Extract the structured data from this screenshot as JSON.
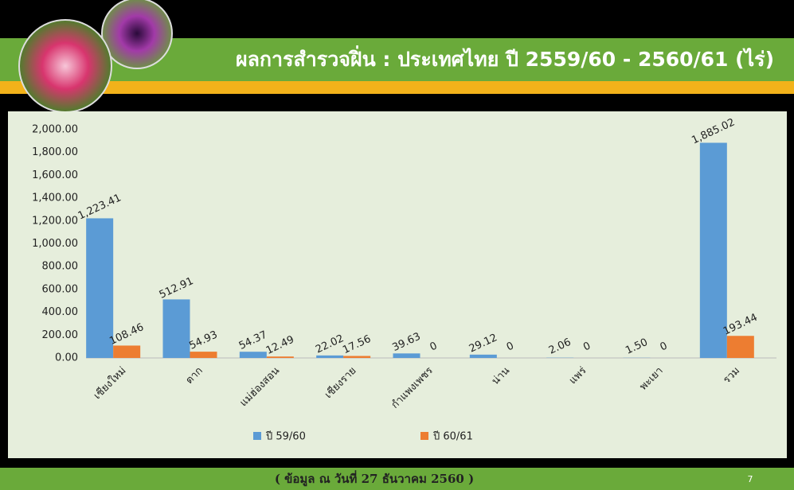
{
  "chart_data": {
    "type": "bar",
    "title": "ผลการสำรวจฝิ่น : ประเทศไทย ปี 2559/60 - 2560/61 (ไร่)",
    "categories": [
      "เชียงใหม่",
      "ตาก",
      "แม่ฮ่องสอน",
      "เชียงราย",
      "กำแพงเพชร",
      "น่าน",
      "แพร่",
      "พะเยา",
      "รวม"
    ],
    "series": [
      {
        "name": "ปี 59/60",
        "color": "#5b9bd5",
        "values": [
          1223.41,
          512.91,
          54.37,
          22.02,
          39.63,
          29.12,
          2.06,
          1.5,
          1885.02
        ],
        "value_labels": [
          "1,223.41",
          "512.91",
          "54.37",
          "22.02",
          "39.63",
          "29.12",
          "2.06",
          "1.50",
          "1,885.02"
        ]
      },
      {
        "name": "ปี 60/61",
        "color": "#ed7d31",
        "values": [
          108.46,
          54.93,
          12.49,
          17.56,
          0,
          0,
          0,
          0,
          193.44
        ]
      }
    ],
    "ylim": [
      0,
      2000
    ],
    "yticks": [
      {
        "value": 0,
        "label": "0.00"
      },
      {
        "value": 200,
        "label": "200.00"
      },
      {
        "value": 400,
        "label": "400.00"
      },
      {
        "value": 600,
        "label": "600.00"
      },
      {
        "value": 800,
        "label": "800.00"
      },
      {
        "value": 1000,
        "label": "1,000.00"
      },
      {
        "value": 1200,
        "label": "1,200.00"
      },
      {
        "value": 1400,
        "label": "1,400.00"
      },
      {
        "value": 1600,
        "label": "1,600.00"
      },
      {
        "value": 1800,
        "label": "1,800.00"
      },
      {
        "value": 2000,
        "label": "2,000.00"
      }
    ],
    "grid": false,
    "legend": "bottom"
  },
  "footer": "( ข้อมูล ณ วันที่ 27 ธันวาคม 2560 )",
  "page_number": "7"
}
